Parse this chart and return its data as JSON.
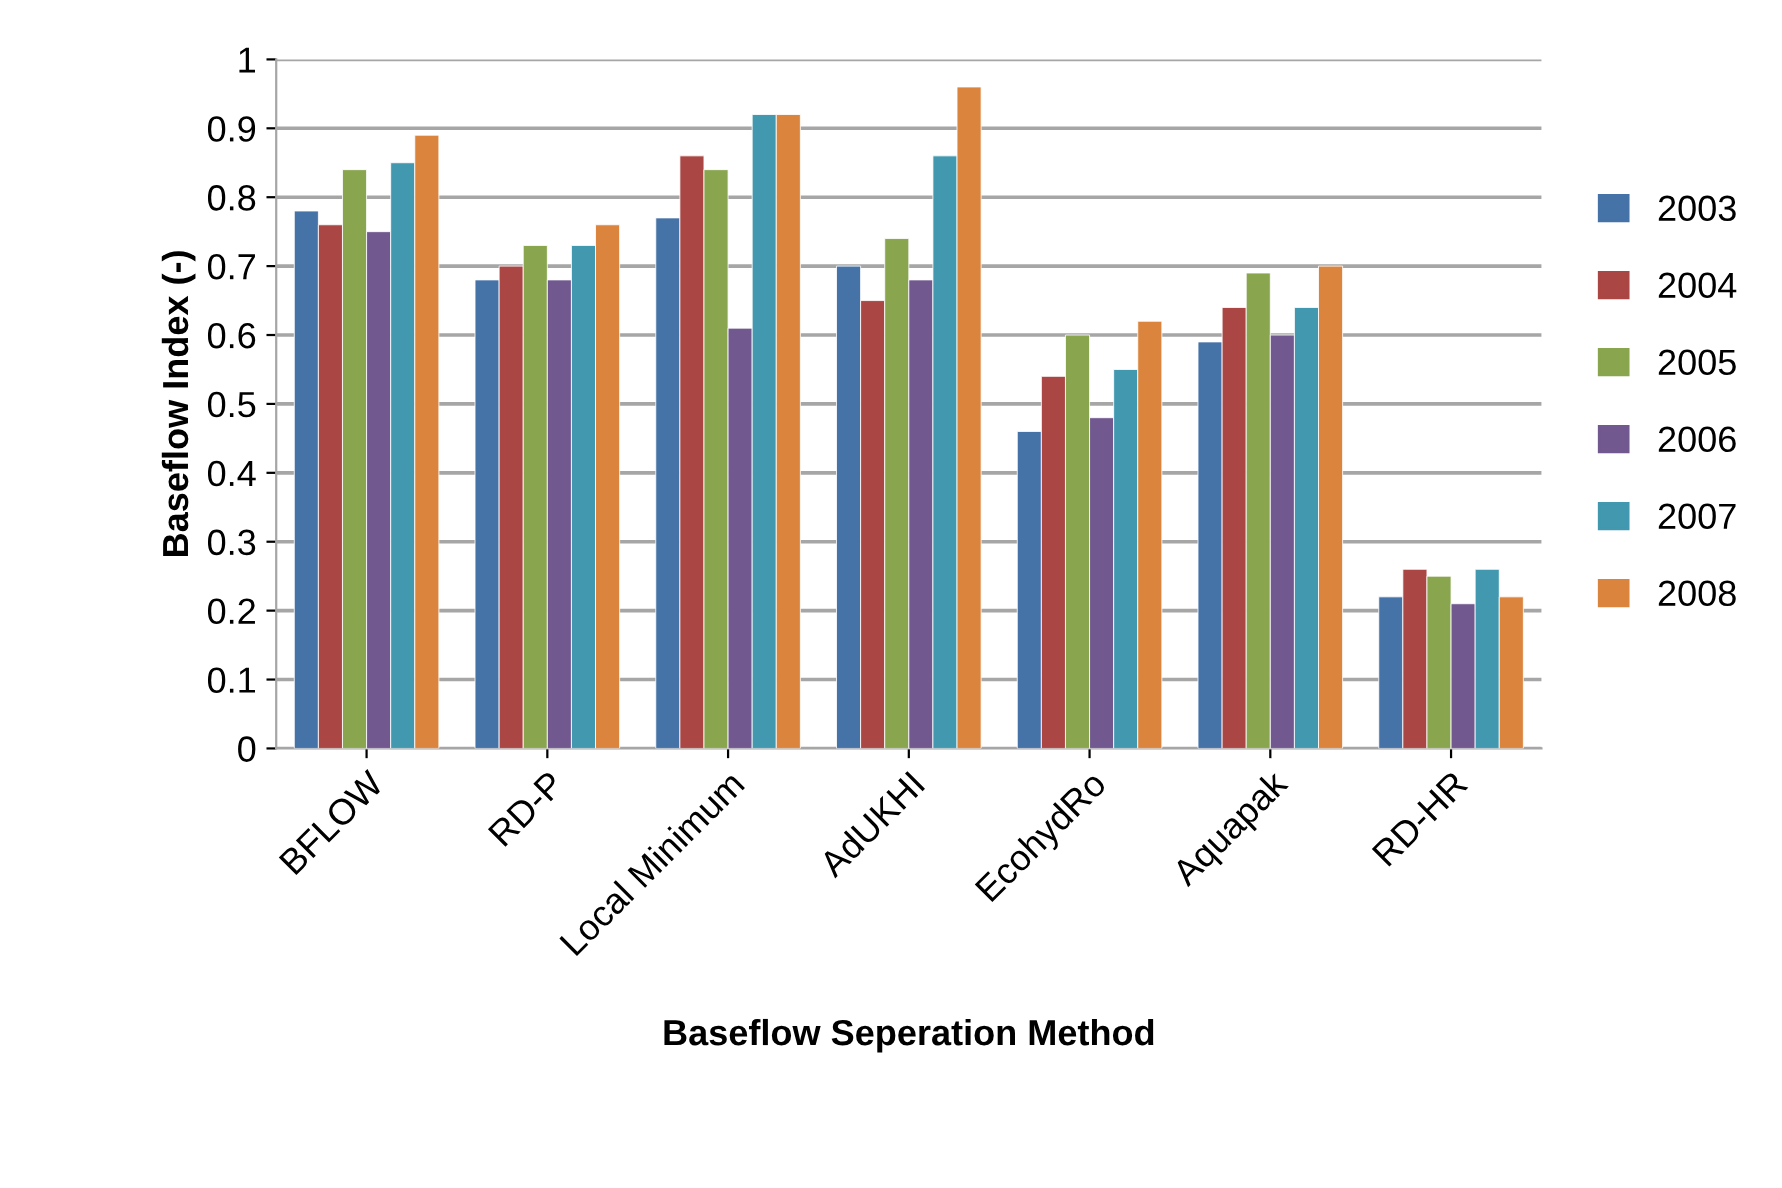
{
  "chart_data": {
    "type": "bar",
    "xlabel": "Baseflow Seperation Method",
    "ylabel": "Baseflow Index (-)",
    "categories": [
      "BFLOW",
      "RD-P",
      "Local Minimum",
      "AdUKHI",
      "EcohydRo",
      "Aquapak",
      "RD-HR"
    ],
    "series": [
      {
        "name": "2003",
        "color": "#4572a7",
        "values": [
          0.78,
          0.68,
          0.77,
          0.7,
          0.46,
          0.59,
          0.22
        ]
      },
      {
        "name": "2004",
        "color": "#aa4643",
        "values": [
          0.76,
          0.7,
          0.86,
          0.65,
          0.54,
          0.64,
          0.26
        ]
      },
      {
        "name": "2005",
        "color": "#89a54e",
        "values": [
          0.84,
          0.73,
          0.84,
          0.74,
          0.6,
          0.69,
          0.25
        ]
      },
      {
        "name": "2006",
        "color": "#71588f",
        "values": [
          0.75,
          0.68,
          0.61,
          0.68,
          0.48,
          0.6,
          0.21
        ]
      },
      {
        "name": "2007",
        "color": "#4198af",
        "values": [
          0.85,
          0.73,
          0.92,
          0.86,
          0.55,
          0.64,
          0.26
        ]
      },
      {
        "name": "2008",
        "color": "#db843d",
        "values": [
          0.89,
          0.76,
          0.92,
          0.96,
          0.62,
          0.7,
          0.22
        ]
      }
    ],
    "ylim": [
      0,
      1
    ],
    "yticks": [
      0,
      {
        "value": 0.1,
        "label": "0.1"
      },
      {
        "value": 0.2,
        "label": "0.2"
      },
      {
        "value": 0.3,
        "label": "0.3"
      },
      {
        "value": 0.4,
        "label": "0.4"
      },
      {
        "value": 0.5,
        "label": "0.5"
      },
      {
        "value": 0.6,
        "label": "0.6"
      },
      {
        "value": 0.7,
        "label": "0.7"
      },
      {
        "value": 0.8,
        "label": "0.8"
      },
      {
        "value": 0.9,
        "label": "0.9"
      },
      1
    ],
    "grid": "y",
    "legend": "right"
  }
}
